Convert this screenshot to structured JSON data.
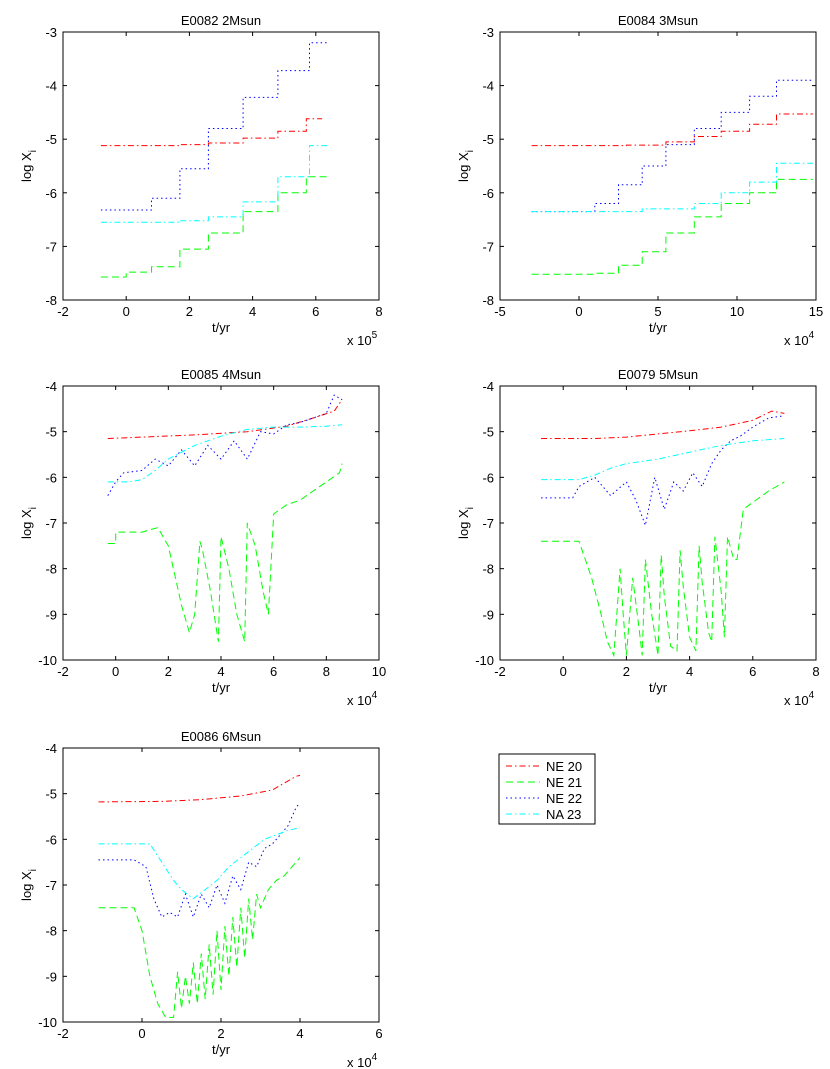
{
  "figure": {
    "legend": {
      "placement": "right of bottom-left panel",
      "entries": [
        {
          "label": "NE 20",
          "color": "#ff0000",
          "style": "dashdot"
        },
        {
          "label": "NE 21",
          "color": "#00ff00",
          "style": "dashed"
        },
        {
          "label": "NE 22",
          "color": "#0000ff",
          "style": "dotted"
        },
        {
          "label": "NA 23",
          "color": "#00ffff",
          "style": "dashdot"
        }
      ]
    }
  },
  "chart_data": [
    {
      "type": "line",
      "title": "E0082 2Msun",
      "xlabel": "t/yr",
      "ylabel": "log X",
      "ylabel_sub": "i",
      "xlim": [
        -2,
        8
      ],
      "ylim": [
        -8,
        -3
      ],
      "xticks": [
        "-2",
        "0",
        "2",
        "4",
        "6",
        "8"
      ],
      "yticks": [
        "-8",
        "-7",
        "-6",
        "-5",
        "-4",
        "-3"
      ],
      "x_multiplier": {
        "prefix": "x 10",
        "exp": "5"
      },
      "series": [
        {
          "name": "NE 20",
          "x": [
            -0.8,
            0.8,
            1.7,
            2.6,
            3.7,
            4.8,
            5.7,
            6.2
          ],
          "y": [
            -5.12,
            -5.12,
            -5.1,
            -5.07,
            -4.98,
            -4.85,
            -4.62,
            -4.62
          ],
          "step": true
        },
        {
          "name": "NE 21",
          "x": [
            -0.8,
            0.0,
            0.8,
            1.7,
            2.6,
            3.7,
            4.8,
            5.7,
            6.4
          ],
          "y": [
            -7.57,
            -7.48,
            -7.38,
            -7.05,
            -6.75,
            -6.35,
            -6.0,
            -5.7,
            -5.7
          ],
          "step": true
        },
        {
          "name": "NE 22",
          "x": [
            -0.8,
            0.8,
            1.7,
            2.6,
            3.7,
            4.8,
            5.8,
            6.4
          ],
          "y": [
            -6.32,
            -6.1,
            -5.55,
            -4.8,
            -4.22,
            -3.72,
            -3.2,
            -3.2
          ],
          "step": true
        },
        {
          "name": "NA 23",
          "x": [
            -0.8,
            1.7,
            2.6,
            3.7,
            4.8,
            5.8,
            6.4
          ],
          "y": [
            -6.55,
            -6.52,
            -6.45,
            -6.17,
            -5.7,
            -5.12,
            -5.12
          ],
          "step": true
        }
      ]
    },
    {
      "type": "line",
      "title": "E0084 3Msun",
      "xlabel": "t/yr",
      "ylabel": "log X",
      "ylabel_sub": "i",
      "xlim": [
        -5,
        15
      ],
      "ylim": [
        -8,
        -3
      ],
      "xticks": [
        "-5",
        "0",
        "5",
        "10",
        "15"
      ],
      "yticks": [
        "-8",
        "-7",
        "-6",
        "-5",
        "-4",
        "-3"
      ],
      "x_multiplier": {
        "prefix": "x 10",
        "exp": "4"
      },
      "series": [
        {
          "name": "NE 20",
          "x": [
            -3.0,
            3.0,
            5.5,
            7.3,
            9.0,
            10.8,
            12.5,
            14.8
          ],
          "y": [
            -5.12,
            -5.11,
            -5.05,
            -4.95,
            -4.85,
            -4.72,
            -4.53,
            -4.53
          ],
          "step": true
        },
        {
          "name": "NE 21",
          "x": [
            -3.0,
            1.0,
            2.5,
            4.0,
            5.5,
            7.3,
            9.0,
            10.8,
            12.5,
            14.8
          ],
          "y": [
            -7.52,
            -7.5,
            -7.35,
            -7.1,
            -6.75,
            -6.45,
            -6.2,
            -6.0,
            -5.75,
            -5.75
          ],
          "step": true
        },
        {
          "name": "NE 22",
          "x": [
            -3.0,
            1.0,
            2.5,
            4.0,
            5.5,
            7.3,
            9.0,
            10.8,
            12.5,
            14.8
          ],
          "y": [
            -6.35,
            -6.2,
            -5.85,
            -5.5,
            -5.1,
            -4.8,
            -4.5,
            -4.2,
            -3.9,
            -3.9
          ],
          "step": true
        },
        {
          "name": "NA 23",
          "x": [
            -3.0,
            4.0,
            7.3,
            9.0,
            10.8,
            12.5,
            14.8
          ],
          "y": [
            -6.35,
            -6.3,
            -6.2,
            -6.0,
            -5.8,
            -5.45,
            -5.45
          ],
          "step": true
        }
      ]
    },
    {
      "type": "line",
      "title": "E0085 4Msun",
      "xlabel": "t/yr",
      "ylabel": "log X",
      "ylabel_sub": "i",
      "xlim": [
        -2,
        10
      ],
      "ylim": [
        -10,
        -4
      ],
      "xticks": [
        "-2",
        "0",
        "2",
        "4",
        "6",
        "8",
        "10"
      ],
      "yticks": [
        "-10",
        "-9",
        "-8",
        "-7",
        "-6",
        "-5",
        "-4"
      ],
      "x_multiplier": {
        "prefix": "x 10",
        "exp": "4"
      },
      "series": [
        {
          "name": "NE 20",
          "x": [
            -0.3,
            1.0,
            3.0,
            5.0,
            6.5,
            7.5,
            8.3,
            8.6
          ],
          "y": [
            -5.15,
            -5.12,
            -5.07,
            -5.0,
            -4.88,
            -4.7,
            -4.55,
            -4.3
          ]
        },
        {
          "name": "NE 21",
          "x": [
            -0.3,
            0.0,
            0.0,
            1.0,
            1.6,
            2.0,
            2.5,
            2.8,
            3.0,
            3.2,
            3.3,
            3.6,
            3.9,
            4.0,
            4.3,
            4.6,
            4.9,
            5.0,
            5.3,
            5.6,
            5.8,
            6.0,
            6.5,
            7.0,
            7.5,
            8.0,
            8.5,
            8.6
          ],
          "y": [
            -7.45,
            -7.45,
            -7.2,
            -7.2,
            -7.1,
            -7.5,
            -8.8,
            -9.4,
            -9.0,
            -7.4,
            -7.6,
            -8.5,
            -9.6,
            -7.3,
            -8.0,
            -9.0,
            -9.6,
            -7.0,
            -7.5,
            -8.5,
            -9.0,
            -6.8,
            -6.6,
            -6.5,
            -6.3,
            -6.1,
            -5.9,
            -5.7
          ]
        },
        {
          "name": "NE 22",
          "x": [
            -0.3,
            0.0,
            0.3,
            1.0,
            1.5,
            2.0,
            2.5,
            3.0,
            3.5,
            4.0,
            4.5,
            5.0,
            5.5,
            6.0,
            6.5,
            7.0,
            7.5,
            8.0,
            8.3,
            8.6
          ],
          "y": [
            -6.4,
            -6.1,
            -5.9,
            -5.85,
            -5.6,
            -5.75,
            -5.4,
            -5.75,
            -5.3,
            -5.6,
            -5.2,
            -5.6,
            -5.0,
            -5.05,
            -4.85,
            -4.8,
            -4.7,
            -4.6,
            -4.2,
            -4.3
          ]
        },
        {
          "name": "NA 23",
          "x": [
            -0.3,
            0.5,
            1.0,
            1.5,
            2.0,
            3.0,
            4.0,
            5.0,
            6.0,
            7.0,
            8.0,
            8.6
          ],
          "y": [
            -6.1,
            -6.1,
            -6.05,
            -5.85,
            -5.6,
            -5.3,
            -5.1,
            -4.95,
            -4.9,
            -4.9,
            -4.88,
            -4.85
          ]
        }
      ]
    },
    {
      "type": "line",
      "title": "E0079 5Msun",
      "xlabel": "t/yr",
      "ylabel": "log X",
      "ylabel_sub": "i",
      "xlim": [
        -2,
        8
      ],
      "ylim": [
        -10,
        -4
      ],
      "xticks": [
        "-2",
        "0",
        "2",
        "4",
        "6",
        "8"
      ],
      "yticks": [
        "-10",
        "-9",
        "-8",
        "-7",
        "-6",
        "-5",
        "-4"
      ],
      "x_multiplier": {
        "prefix": "x 10",
        "exp": "4"
      },
      "series": [
        {
          "name": "NE 20",
          "x": [
            -0.7,
            1.0,
            2.0,
            3.0,
            4.0,
            5.0,
            6.0,
            6.6,
            7.0
          ],
          "y": [
            -5.15,
            -5.15,
            -5.12,
            -5.05,
            -4.98,
            -4.9,
            -4.75,
            -4.55,
            -4.6
          ]
        },
        {
          "name": "NE 21",
          "x": [
            -0.7,
            0.5,
            0.9,
            1.2,
            1.4,
            1.6,
            1.8,
            1.9,
            2.0,
            2.2,
            2.4,
            2.5,
            2.6,
            2.8,
            3.0,
            3.1,
            3.2,
            3.4,
            3.6,
            3.7,
            3.8,
            4.0,
            4.2,
            4.3,
            4.4,
            4.6,
            4.7,
            4.8,
            5.0,
            5.1,
            5.2,
            5.4,
            5.5,
            5.7,
            5.9,
            6.5,
            7.0
          ],
          "y": [
            -7.4,
            -7.4,
            -8.2,
            -9.0,
            -9.6,
            -9.9,
            -8.0,
            -9.0,
            -9.9,
            -8.2,
            -9.3,
            -9.9,
            -7.8,
            -9.0,
            -9.9,
            -7.7,
            -8.6,
            -9.7,
            -9.8,
            -7.6,
            -8.4,
            -9.5,
            -9.8,
            -7.5,
            -8.3,
            -9.4,
            -9.6,
            -7.3,
            -8.5,
            -9.5,
            -7.3,
            -7.8,
            -7.8,
            -6.7,
            -6.6,
            -6.3,
            -6.1
          ]
        },
        {
          "name": "NE 22",
          "x": [
            -0.7,
            0.3,
            0.5,
            1.0,
            1.5,
            2.0,
            2.3,
            2.6,
            2.9,
            3.2,
            3.5,
            3.8,
            4.1,
            4.4,
            4.7,
            5.0,
            5.3,
            5.6,
            6.0,
            6.5,
            7.0
          ],
          "y": [
            -6.45,
            -6.45,
            -6.2,
            -6.0,
            -6.4,
            -6.1,
            -6.5,
            -7.05,
            -6.0,
            -6.7,
            -6.1,
            -6.3,
            -5.9,
            -6.2,
            -5.7,
            -5.4,
            -5.2,
            -5.1,
            -4.9,
            -4.7,
            -4.65
          ]
        },
        {
          "name": "NA 23",
          "x": [
            -0.7,
            0.5,
            1.0,
            1.5,
            2.0,
            3.0,
            4.0,
            5.0,
            6.0,
            7.0
          ],
          "y": [
            -6.05,
            -6.05,
            -5.95,
            -5.8,
            -5.7,
            -5.6,
            -5.45,
            -5.3,
            -5.2,
            -5.15
          ]
        }
      ]
    },
    {
      "type": "line",
      "title": "E0086 6Msun",
      "xlabel": "t/yr",
      "ylabel": "log X",
      "ylabel_sub": "i",
      "xlim": [
        -2,
        6
      ],
      "ylim": [
        -10,
        -4
      ],
      "xticks": [
        "-2",
        "0",
        "2",
        "4",
        "6"
      ],
      "yticks": [
        "-10",
        "-9",
        "-8",
        "-7",
        "-6",
        "-5",
        "-4"
      ],
      "x_multiplier": {
        "prefix": "x 10",
        "exp": "4"
      },
      "series": [
        {
          "name": "NE 20",
          "x": [
            -1.1,
            0.5,
            1.5,
            2.5,
            3.3,
            3.9,
            4.0
          ],
          "y": [
            -5.18,
            -5.17,
            -5.13,
            -5.05,
            -4.92,
            -4.62,
            -4.6
          ]
        },
        {
          "name": "NE 21",
          "x": [
            -1.1,
            -0.2,
            0.0,
            0.2,
            0.4,
            0.6,
            0.8,
            0.9,
            1.0,
            1.1,
            1.2,
            1.3,
            1.4,
            1.5,
            1.6,
            1.7,
            1.8,
            1.9,
            2.0,
            2.1,
            2.2,
            2.3,
            2.4,
            2.5,
            2.6,
            2.7,
            2.8,
            2.9,
            3.0,
            3.2,
            3.4,
            3.6,
            3.8,
            4.0
          ],
          "y": [
            -7.5,
            -7.5,
            -8.0,
            -9.0,
            -9.6,
            -9.9,
            -9.9,
            -8.9,
            -9.7,
            -9.0,
            -9.6,
            -8.7,
            -9.6,
            -8.5,
            -9.5,
            -8.3,
            -9.4,
            -8.0,
            -9.3,
            -7.9,
            -9.0,
            -7.7,
            -8.8,
            -7.5,
            -8.6,
            -7.3,
            -8.2,
            -7.2,
            -7.5,
            -7.1,
            -6.9,
            -6.8,
            -6.6,
            -6.4
          ]
        },
        {
          "name": "NE 22",
          "x": [
            -1.1,
            -0.2,
            0.1,
            0.3,
            0.5,
            0.7,
            0.9,
            1.1,
            1.3,
            1.5,
            1.7,
            1.9,
            2.1,
            2.3,
            2.5,
            2.7,
            2.9,
            3.1,
            3.3,
            3.5,
            3.7,
            3.9,
            4.0
          ],
          "y": [
            -6.45,
            -6.45,
            -6.6,
            -7.3,
            -7.7,
            -7.6,
            -7.7,
            -7.2,
            -7.7,
            -7.2,
            -7.5,
            -7.0,
            -7.4,
            -6.8,
            -7.1,
            -6.5,
            -6.6,
            -6.2,
            -6.1,
            -5.9,
            -5.7,
            -5.3,
            -5.2
          ]
        },
        {
          "name": "NA 23",
          "x": [
            -1.1,
            0.2,
            0.5,
            0.8,
            1.0,
            1.3,
            1.6,
            1.9,
            2.2,
            2.5,
            2.8,
            3.1,
            3.4,
            3.7,
            4.0
          ],
          "y": [
            -6.1,
            -6.1,
            -6.5,
            -6.9,
            -7.1,
            -7.3,
            -7.1,
            -6.9,
            -6.6,
            -6.4,
            -6.2,
            -6.0,
            -5.9,
            -5.8,
            -5.75
          ]
        }
      ]
    }
  ]
}
